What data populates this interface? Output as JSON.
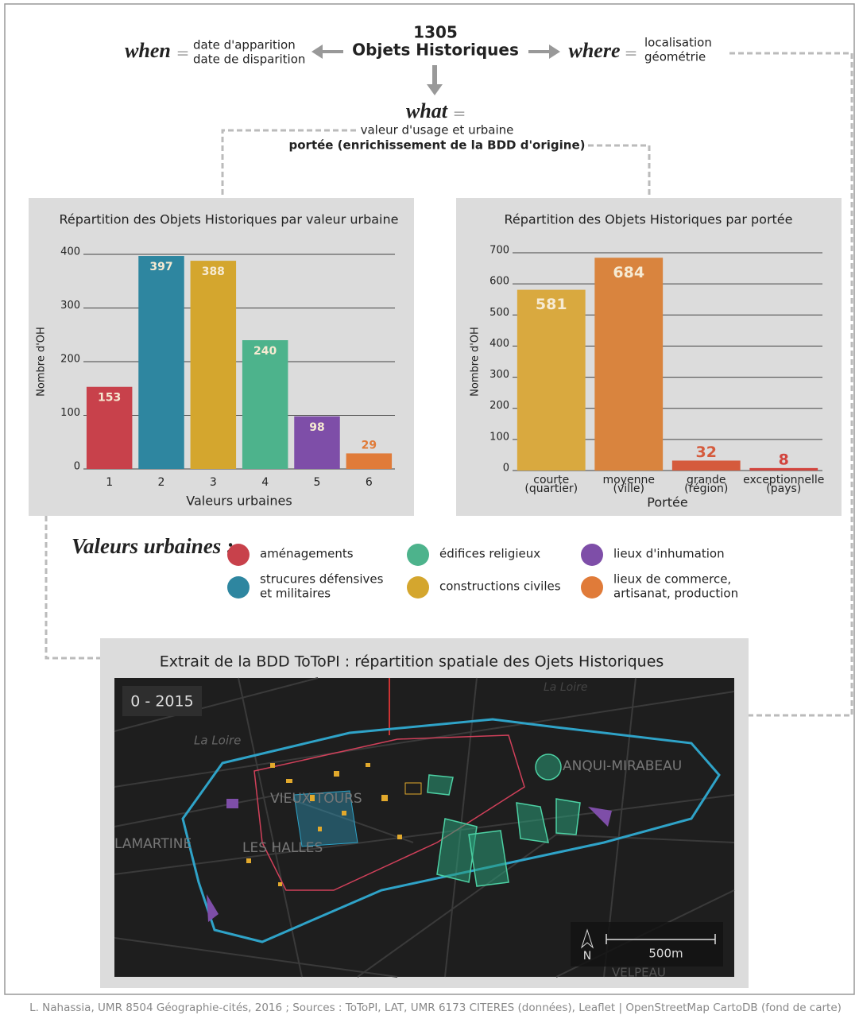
{
  "header": {
    "count": "1305",
    "main": "Objets Historiques",
    "equals": "=",
    "when": "when",
    "when_lines": [
      "date d'apparition",
      "date de disparition"
    ],
    "where": "where",
    "where_lines": [
      "localisation",
      "géométrie"
    ],
    "what": "what",
    "what_lines": [
      "valeur d'usage et urbaine",
      "portée (enrichissement de la BDD d'origine)"
    ]
  },
  "chart_data": [
    {
      "type": "bar",
      "title": "Répartition des Objets Historiques par valeur urbaine",
      "y_label": "Nombre d'OH",
      "x_label": "Valeurs urbaines",
      "categories": [
        "1",
        "2",
        "3",
        "4",
        "5",
        "6"
      ],
      "values": [
        153,
        397,
        388,
        240,
        98,
        29
      ],
      "colors": [
        "#c8414b",
        "#2e86a0",
        "#d4a62e",
        "#4db38c",
        "#7e4ea8",
        "#e07b39"
      ],
      "ylim": [
        0,
        400
      ],
      "yticks": [
        0,
        100,
        200,
        300,
        400
      ],
      "grid": true
    },
    {
      "type": "bar",
      "title": "Répartition des Objets Historiques par portée",
      "y_label": "Nombre d'OH",
      "x_label": "Portée",
      "categories": [
        "courte",
        "moyenne",
        "grande",
        "exceptionnelle"
      ],
      "category_sublabels": [
        "(quartier)",
        "(ville)",
        "(région)",
        "(pays)"
      ],
      "values": [
        581,
        684,
        32,
        8
      ],
      "colors": [
        "#d9a93f",
        "#d9843e",
        "#d55a3c",
        "#d2453e"
      ],
      "ylim": [
        0,
        700
      ],
      "yticks": [
        0,
        100,
        200,
        300,
        400,
        500,
        600,
        700
      ],
      "grid": true
    }
  ],
  "legend": {
    "title": "Valeurs urbaines :",
    "items": [
      {
        "lines": [
          "aménagements"
        ],
        "color": "#c8414b"
      },
      {
        "lines": [
          "strucures défensives",
          "et militaires"
        ],
        "color": "#2e86a0"
      },
      {
        "lines": [
          "édifices religieux"
        ],
        "color": "#4db38c"
      },
      {
        "lines": [
          "constructions civiles"
        ],
        "color": "#d4a62e"
      },
      {
        "lines": [
          "lieux d'inhumation"
        ],
        "color": "#7e4ea8"
      },
      {
        "lines": [
          "lieux de commerce,",
          "artisanat, production"
        ],
        "color": "#e07b39"
      }
    ]
  },
  "map": {
    "title": "Extrait de la BDD ToToPI : répartition spatiale des Ojets Historiques",
    "period": "0 - 2015",
    "places": [
      "La Loire",
      "VIEUX TOURS",
      "LES HALLES",
      "LAMARTINE",
      "ANQUI-MIRABEAU",
      "VELPEAU",
      "La Loire"
    ],
    "north": "N",
    "scale": "500m"
  },
  "footer": "L. Nahassia, UMR 8504 Géographie-cités, 2016 ; Sources : ToToPI, LAT, UMR 6173 CITERES (données), Leaflet | OpenStreetMap CartoDB (fond de carte)"
}
